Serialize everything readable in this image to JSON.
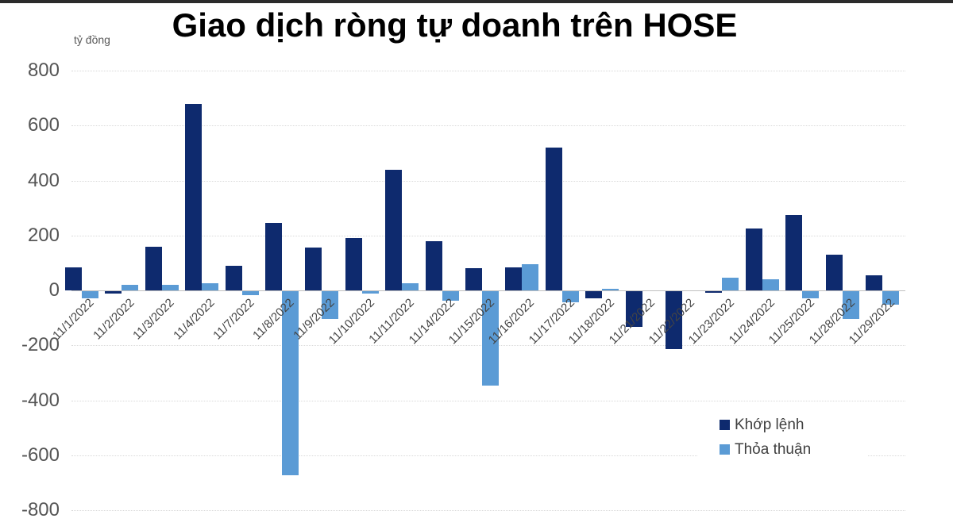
{
  "page": {
    "background_color": "#ffffff",
    "top_bar_color": "#2b2b2b"
  },
  "chart_data": {
    "type": "bar",
    "title": "Giao dịch ròng tự doanh trên HOSE",
    "unit_label": "tỷ đồng",
    "categories": [
      "11/1/2022",
      "11/2/2022",
      "11/3/2022",
      "11/4/2022",
      "11/7/2022",
      "11/8/2022",
      "11/9/2022",
      "11/10/2022",
      "11/11/2022",
      "11/14/2022",
      "11/15/2022",
      "11/16/2022",
      "11/17/2022",
      "11/18/2022",
      "11/21/2022",
      "11/22/2022",
      "11/23/2022",
      "11/24/2022",
      "11/25/2022",
      "11/28/2022",
      "11/29/2022"
    ],
    "series": [
      {
        "name": "Khớp lệnh",
        "color": "#0e2a6e",
        "values": [
          85,
          -10,
          160,
          680,
          90,
          245,
          155,
          190,
          440,
          180,
          80,
          85,
          520,
          -25,
          -130,
          -210,
          -5,
          225,
          275,
          130,
          55
        ]
      },
      {
        "name": "Thỏa thuận",
        "color": "#5b9bd5",
        "values": [
          -25,
          20,
          20,
          25,
          -15,
          -670,
          -100,
          -10,
          25,
          -35,
          -345,
          95,
          -40,
          5,
          0,
          0,
          45,
          40,
          -25,
          -100,
          -50
        ]
      }
    ],
    "ylim": [
      -800,
      800
    ],
    "yticks": [
      800,
      600,
      400,
      200,
      0,
      -200,
      -400,
      -600,
      -800
    ],
    "grid": "horizontal-dotted",
    "legend_position": "middle-right",
    "gridline_color": "#d9d9d9",
    "axis_line_color": "#bfbfbf",
    "tick_label_color": "#555555",
    "date_label_color": "#444444"
  }
}
